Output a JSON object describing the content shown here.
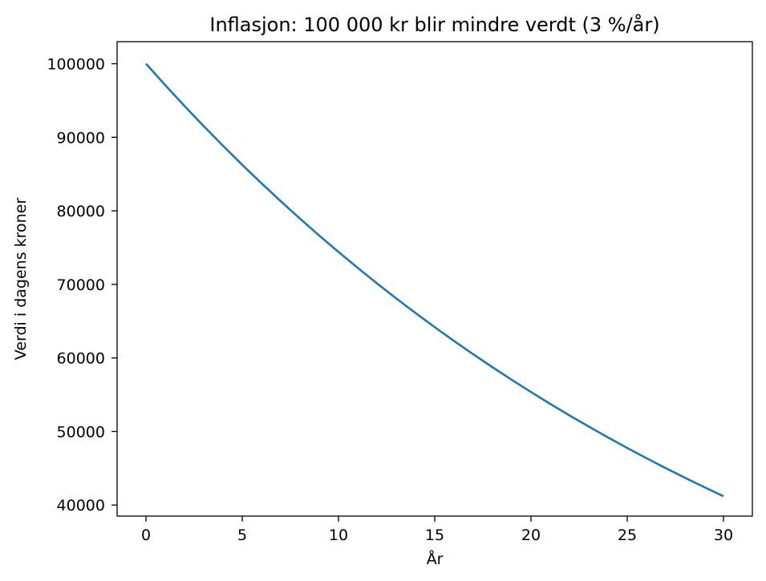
{
  "chart_data": {
    "type": "line",
    "title": "Inflasjon: 100 000 kr blir mindre verdt (3 %/år)",
    "xlabel": "År",
    "ylabel": "Verdi i dagens kroner",
    "xlim": [
      -1.5,
      31.5
    ],
    "ylim": [
      38500,
      103000
    ],
    "xticks": [
      0,
      5,
      10,
      15,
      20,
      25,
      30
    ],
    "yticks": [
      40000,
      50000,
      60000,
      70000,
      80000,
      90000,
      100000
    ],
    "grid": false,
    "legend": "none",
    "color": "#1f77b4",
    "series": [
      {
        "x": [
          0,
          1,
          2,
          3,
          4,
          5,
          6,
          7,
          8,
          9,
          10,
          11,
          12,
          13,
          14,
          15,
          16,
          17,
          18,
          19,
          20,
          21,
          22,
          23,
          24,
          25,
          26,
          27,
          28,
          29,
          30
        ],
        "values": [
          100000,
          97087,
          94260,
          91514,
          88849,
          86261,
          83748,
          81309,
          78941,
          76642,
          74409,
          72242,
          70138,
          68095,
          66112,
          64186,
          62317,
          60502,
          58739,
          57029,
          55368,
          53755,
          52189,
          50669,
          49193,
          47761,
          46369,
          45019,
          43708,
          42435,
          41199
        ]
      }
    ]
  }
}
